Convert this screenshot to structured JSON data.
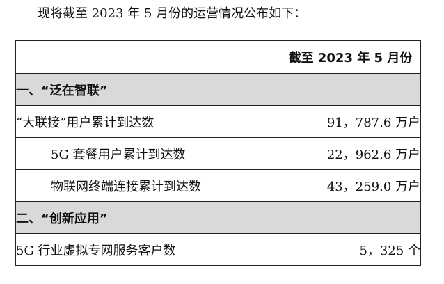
{
  "intro": "现将截至 2023 年 5 月份的运营情况公布如下：",
  "table": {
    "header_period": "截至 2023 年 5 月份",
    "sections": [
      {
        "title": "一、“泛在智联”",
        "rows": [
          {
            "label": "“大联接”用户累计到达数",
            "value": "91，787.6 万户"
          },
          {
            "label": "5G 套餐用户累计到达数",
            "value": "22，962.6 万户"
          },
          {
            "label": "物联网终端连接累计到达数",
            "value": "43，259.0 万户"
          }
        ]
      },
      {
        "title": "二、“创新应用”",
        "rows": [
          {
            "label": "5G 行业虚拟专网服务客户数",
            "value": "5，325 个"
          }
        ]
      }
    ]
  }
}
